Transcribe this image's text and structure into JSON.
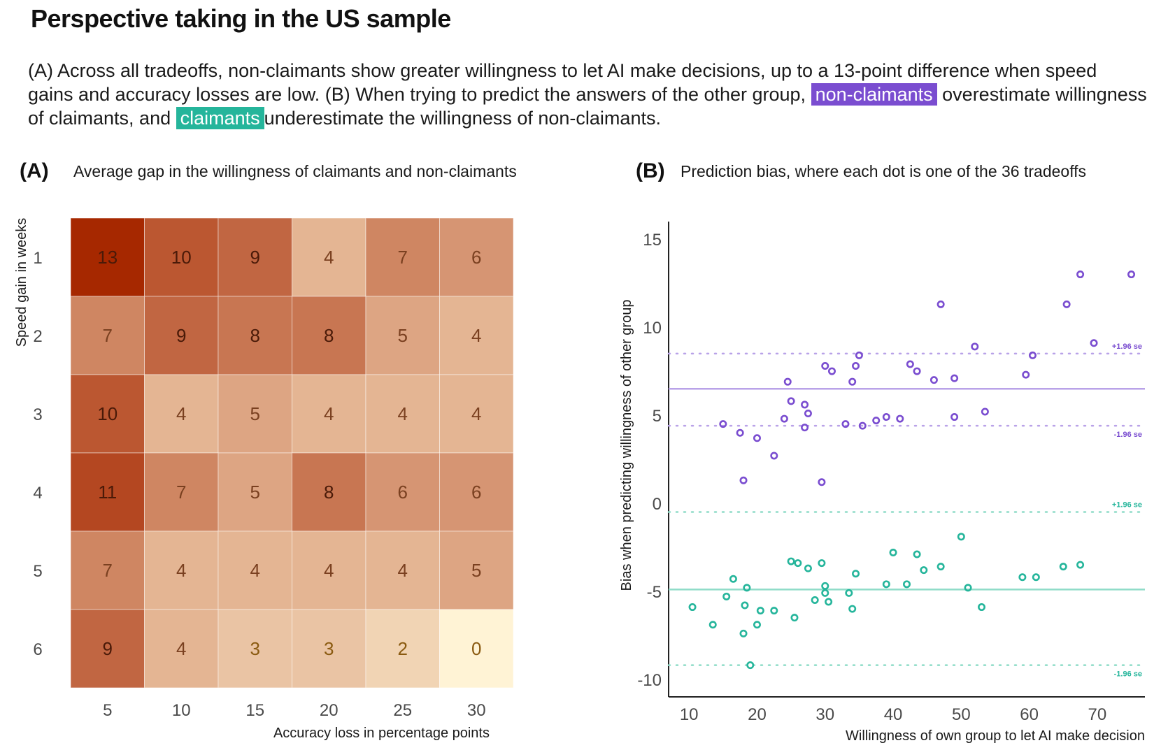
{
  "title": "Perspective taking in the US sample",
  "subtitle": {
    "part1": "(A) Across all tradeoffs, non-claimants show greater willingness to let AI make decisions, up to a 13-point difference when speed gains and accuracy losses are low. (B) When trying to predict the answers of the other group, ",
    "hl_noncl": "non-claimants",
    "part2": " overestimate willingness of claimants, and ",
    "hl_cl": "claimants",
    "part3": "underestimate the willingness of non-claimants."
  },
  "colors": {
    "purple": "#7a4dd0",
    "green": "#25b59b",
    "purple_light": "#b9a2e8",
    "green_light": "#8fdcc8"
  },
  "panelA": {
    "letter": "(A)",
    "title": "Average gap in the willingness of claimants and non-claimants"
  },
  "panelB": {
    "letter": "(B)",
    "title": "Prediction bias, where each dot is one of the 36 tradeoffs"
  },
  "chart_data": [
    {
      "type": "heatmap",
      "xlabel": "Accuracy loss in percentage points",
      "ylabel": "Speed gain in weeks",
      "x": [
        5,
        10,
        15,
        20,
        25,
        30
      ],
      "y": [
        1,
        2,
        3,
        4,
        5,
        6
      ],
      "values": [
        [
          13,
          10,
          9,
          4,
          7,
          6
        ],
        [
          7,
          9,
          8,
          8,
          5,
          4
        ],
        [
          10,
          4,
          5,
          4,
          4,
          4
        ],
        [
          11,
          7,
          5,
          8,
          6,
          6
        ],
        [
          7,
          4,
          4,
          4,
          4,
          5
        ],
        [
          9,
          4,
          3,
          3,
          2,
          0
        ]
      ],
      "value_range": [
        0,
        13
      ]
    },
    {
      "type": "scatter",
      "xlabel": "Willingness of own group to let AI make decision",
      "ylabel": "Bias when predicting willingness of other group",
      "xlim": [
        7,
        77
      ],
      "ylim": [
        -11,
        16
      ],
      "xticks": [
        10,
        20,
        30,
        40,
        50,
        60,
        70
      ],
      "yticks": [
        15,
        10,
        5,
        0,
        -5,
        -10
      ],
      "series": [
        {
          "color": "#7a4dd0",
          "mean": 6.5,
          "upper_se": 8.5,
          "lower_se": 4.4,
          "upper_se_label": "+1.96 se",
          "lower_se_label": "-1.96 se",
          "points": [
            [
              15,
              4.5
            ],
            [
              17.5,
              4.0
            ],
            [
              18,
              1.3
            ],
            [
              20,
              3.7
            ],
            [
              22.5,
              2.7
            ],
            [
              24,
              4.8
            ],
            [
              24.5,
              6.9
            ],
            [
              25,
              5.8
            ],
            [
              27,
              5.6
            ],
            [
              27,
              4.3
            ],
            [
              27.5,
              5.1
            ],
            [
              29.5,
              1.2
            ],
            [
              30,
              7.8
            ],
            [
              31,
              7.5
            ],
            [
              33,
              4.5
            ],
            [
              34,
              6.9
            ],
            [
              34.5,
              7.8
            ],
            [
              35,
              8.4
            ],
            [
              35.5,
              4.4
            ],
            [
              37.5,
              4.7
            ],
            [
              39,
              4.9
            ],
            [
              41,
              4.8
            ],
            [
              42.5,
              7.9
            ],
            [
              43.5,
              7.5
            ],
            [
              46,
              7.0
            ],
            [
              47,
              11.3
            ],
            [
              49,
              7.1
            ],
            [
              49,
              4.9
            ],
            [
              52,
              8.9
            ],
            [
              53.5,
              5.2
            ],
            [
              59.5,
              7.3
            ],
            [
              60.5,
              8.4
            ],
            [
              65.5,
              11.3
            ],
            [
              67.5,
              13.0
            ],
            [
              69.5,
              9.1
            ],
            [
              75,
              13.0
            ]
          ]
        },
        {
          "color": "#25b59b",
          "mean": -4.9,
          "upper_se": -0.5,
          "lower_se": -9.2,
          "upper_se_label": "+1.96 se",
          "lower_se_label": "-1.96 se",
          "points": [
            [
              10.5,
              -5.9
            ],
            [
              13.5,
              -6.9
            ],
            [
              15.5,
              -5.3
            ],
            [
              16.5,
              -4.3
            ],
            [
              18,
              -7.4
            ],
            [
              18.2,
              -5.8
            ],
            [
              18.5,
              -4.8
            ],
            [
              19,
              -9.2
            ],
            [
              20,
              -6.9
            ],
            [
              20.5,
              -6.1
            ],
            [
              22.5,
              -6.1
            ],
            [
              25,
              -3.3
            ],
            [
              25.5,
              -6.5
            ],
            [
              26,
              -3.4
            ],
            [
              27.5,
              -3.7
            ],
            [
              28.5,
              -5.5
            ],
            [
              29.5,
              -3.4
            ],
            [
              30,
              -4.7
            ],
            [
              30,
              -5.1
            ],
            [
              30.5,
              -5.6
            ],
            [
              33.5,
              -5.1
            ],
            [
              34,
              -6.0
            ],
            [
              34.5,
              -4.0
            ],
            [
              39,
              -4.6
            ],
            [
              40,
              -2.8
            ],
            [
              42,
              -4.6
            ],
            [
              43.5,
              -2.9
            ],
            [
              44.5,
              -3.8
            ],
            [
              47,
              -3.6
            ],
            [
              50,
              -1.9
            ],
            [
              51,
              -4.8
            ],
            [
              53,
              -5.9
            ],
            [
              59,
              -4.2
            ],
            [
              61,
              -4.2
            ],
            [
              65,
              -3.6
            ],
            [
              67.5,
              -3.5
            ]
          ]
        }
      ]
    }
  ]
}
